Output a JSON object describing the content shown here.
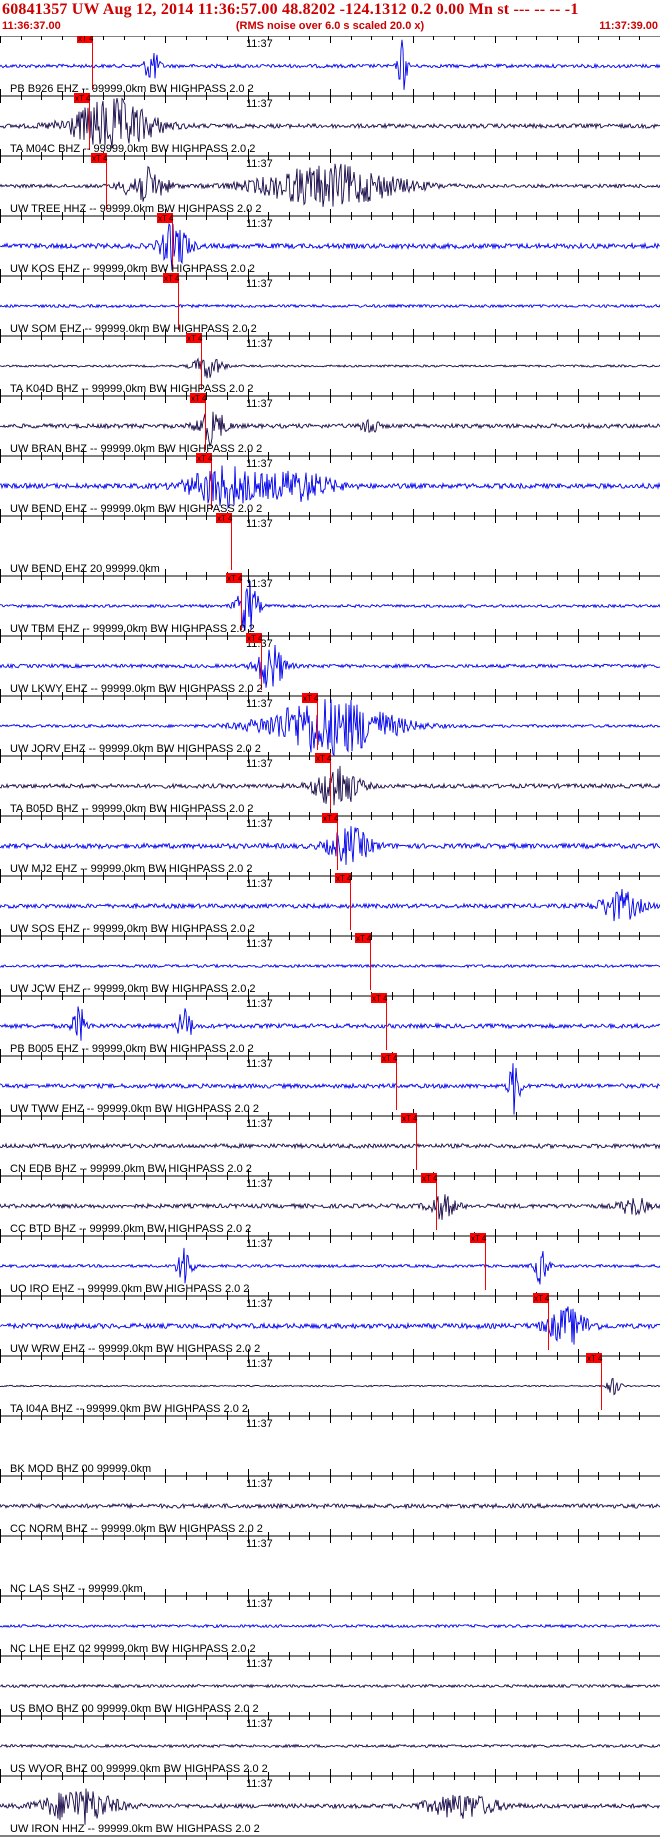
{
  "header": {
    "title": "60841357 UW Aug 12, 2014 11:36:57.00   48.8202 -124.1312  0.2 0.00 Mn st --- -- --  -1",
    "start_time": "11:36:37.00",
    "end_time": "11:37:39.00",
    "rms_note": "(RMS noise over 6.0 s scaled 20.0 x)"
  },
  "colors": {
    "header_text": "#cc0000",
    "pick": "#ff0000",
    "blue": "#0000ee",
    "dark": "#1a0a4a",
    "axis": "#000000"
  },
  "chart_data": {
    "type": "line",
    "title": "60841357 UW Aug 12, 2014 11:36:57.00   48.8202 -124.1312  0.2 0.00 Mn st --- -- --  -1",
    "x_range": [
      "11:36:37.00",
      "11:37:39.00"
    ],
    "minute_label": "11:37",
    "pick_label": "xT 4",
    "traces": [
      {
        "label": "PB B926 EHZ -- 99999.0km BW  HIGHPASS  2.0  2",
        "color": "blue",
        "pick": 0.14,
        "noise": 0.25,
        "bursts": [
          [
            0.23,
            0.6,
            0.01
          ],
          [
            0.61,
            1.0,
            0.006
          ]
        ]
      },
      {
        "label": "TA M04C BHZ -- 99999.0km BW  HIGHPASS  2.0  2",
        "color": "dark",
        "pick": 0.135,
        "noise": 0.3,
        "bursts": [
          [
            0.17,
            0.9,
            0.06
          ]
        ]
      },
      {
        "label": "UW TREE HHZ -- 99999.0km BW  HIGHPASS  2.0  2",
        "color": "dark",
        "pick": 0.16,
        "noise": 0.25,
        "bursts": [
          [
            0.22,
            0.6,
            0.03
          ],
          [
            0.5,
            0.7,
            0.1
          ]
        ]
      },
      {
        "label": "UW KOS EHZ -- 99999.0km BW  HIGHPASS  2.0  2",
        "color": "blue",
        "pick": 0.26,
        "noise": 0.35,
        "bursts": [
          [
            0.265,
            0.8,
            0.02
          ]
        ]
      },
      {
        "label": "UW SOM EHZ -- 99999.0km BW  HIGHPASS  2.0  2",
        "color": "blue",
        "pick": 0.27,
        "noise": 0.2,
        "bursts": []
      },
      {
        "label": "TA K04D BHZ -- 99999.0km BW  HIGHPASS  2.0  2",
        "color": "dark",
        "pick": 0.305,
        "noise": 0.15,
        "bursts": [
          [
            0.315,
            0.4,
            0.02
          ]
        ]
      },
      {
        "label": "UW BRAN BHZ -- 99999.0km BW  HIGHPASS  2.0  2",
        "color": "dark",
        "pick": 0.31,
        "noise": 0.3,
        "bursts": [
          [
            0.32,
            0.6,
            0.02
          ],
          [
            0.56,
            0.4,
            0.01
          ]
        ]
      },
      {
        "label": "UW BEND EHZ -- 99999.0km BW  HIGHPASS  2.0  2",
        "color": "blue",
        "pick": 0.32,
        "noise": 0.35,
        "bursts": [
          [
            0.34,
            0.7,
            0.05
          ],
          [
            0.45,
            0.5,
            0.05
          ]
        ]
      },
      {
        "label": "UW BEND EHZ 20 99999.0km",
        "color": "blue",
        "pick": 0.35,
        "noise": 0.0,
        "bursts": []
      },
      {
        "label": "UW TBM EHZ -- 99999.0km BW  HIGHPASS  2.0  2",
        "color": "blue",
        "pick": 0.365,
        "noise": 0.2,
        "bursts": [
          [
            0.375,
            0.9,
            0.015
          ]
        ]
      },
      {
        "label": "UW LKWY EHZ -- 99999.0km BW  HIGHPASS  2.0  2",
        "color": "blue",
        "pick": 0.395,
        "noise": 0.25,
        "bursts": [
          [
            0.41,
            0.8,
            0.02
          ]
        ]
      },
      {
        "label": "UW JORV EHZ -- 99999.0km BW  HIGHPASS  2.0  2",
        "color": "blue",
        "pick": 0.48,
        "noise": 0.2,
        "bursts": [
          [
            0.5,
            1.0,
            0.09
          ]
        ]
      },
      {
        "label": "TA B05D BHZ -- 99999.0km BW  HIGHPASS  2.0  2",
        "color": "dark",
        "pick": 0.5,
        "noise": 0.3,
        "bursts": [
          [
            0.51,
            0.8,
            0.03
          ]
        ]
      },
      {
        "label": "UW MJ2 EHZ -- 99999.0km BW  HIGHPASS  2.0  2",
        "color": "blue",
        "pick": 0.51,
        "noise": 0.35,
        "bursts": [
          [
            0.53,
            0.6,
            0.03
          ]
        ]
      },
      {
        "label": "UW SOS EHZ -- 99999.0km BW  HIGHPASS  2.0  2",
        "color": "blue",
        "pick": 0.53,
        "noise": 0.3,
        "bursts": [
          [
            0.94,
            0.5,
            0.03
          ]
        ]
      },
      {
        "label": "UW JCW EHZ -- 99999.0km BW  HIGHPASS  2.0  2",
        "color": "blue",
        "pick": 0.56,
        "noise": 0.2,
        "bursts": []
      },
      {
        "label": "PB B005 EHZ -- 99999.0km BW  HIGHPASS  2.0  2",
        "color": "blue",
        "pick": 0.585,
        "noise": 0.3,
        "bursts": [
          [
            0.12,
            0.6,
            0.01
          ],
          [
            0.28,
            0.6,
            0.01
          ]
        ]
      },
      {
        "label": "UW TWW EHZ -- 99999.0km BW  HIGHPASS  2.0  2",
        "color": "blue",
        "pick": 0.6,
        "noise": 0.3,
        "bursts": [
          [
            0.78,
            1.0,
            0.008
          ]
        ]
      },
      {
        "label": "CN EDB BHZ -- 99999.0km BW  HIGHPASS  2.0  2",
        "color": "dark",
        "pick": 0.63,
        "noise": 0.3,
        "bursts": []
      },
      {
        "label": "CC BTD BHZ -- 99999.0km BW  HIGHPASS  2.0  2",
        "color": "dark",
        "pick": 0.66,
        "noise": 0.3,
        "bursts": [
          [
            0.67,
            0.4,
            0.02
          ],
          [
            0.96,
            0.3,
            0.02
          ]
        ]
      },
      {
        "label": "UO IRO EHZ -- 99999.0km BW  HIGHPASS  2.0  2",
        "color": "blue",
        "pick": 0.735,
        "noise": 0.2,
        "bursts": [
          [
            0.28,
            0.8,
            0.01
          ],
          [
            0.82,
            0.6,
            0.01
          ]
        ]
      },
      {
        "label": "UW WRW EHZ -- 99999.0km BW  HIGHPASS  2.0  2",
        "color": "blue",
        "pick": 0.83,
        "noise": 0.35,
        "bursts": [
          [
            0.86,
            0.6,
            0.03
          ]
        ]
      },
      {
        "label": "TA I04A BHZ -- 99999.0km BW  HIGHPASS  2.0  2",
        "color": "dark",
        "pick": 0.91,
        "noise": 0.1,
        "bursts": [
          [
            0.93,
            0.3,
            0.01
          ]
        ]
      },
      {
        "label": "BK MOD BHZ 00 99999.0km",
        "color": "dark",
        "pick": null,
        "noise": 0.0,
        "bursts": []
      },
      {
        "label": "CC NORM BHZ -- 99999.0km BW  HIGHPASS  2.0  2",
        "color": "dark",
        "pick": null,
        "noise": 0.3,
        "bursts": []
      },
      {
        "label": "NC LAS SHZ -- 99999.0km",
        "color": "dark",
        "pick": null,
        "noise": 0.0,
        "bursts": []
      },
      {
        "label": "NC LHE EHZ 02 99999.0km BW  HIGHPASS  2.0  2",
        "color": "blue",
        "pick": null,
        "noise": 0.2,
        "bursts": []
      },
      {
        "label": "US BMO BHZ 00 99999.0km BW  HIGHPASS  2.0  2",
        "color": "dark",
        "pick": null,
        "noise": 0.2,
        "bursts": []
      },
      {
        "label": "US WVOR BHZ 00 99999.0km BW  HIGHPASS  2.0  2",
        "color": "dark",
        "pick": null,
        "noise": 0.2,
        "bursts": []
      },
      {
        "label": "UW IRON HHZ -- 99999.0km BW  HIGHPASS  2.0  2",
        "color": "dark",
        "pick": null,
        "noise": 0.3,
        "bursts": [
          [
            0.12,
            0.6,
            0.05
          ],
          [
            0.7,
            0.4,
            0.05
          ]
        ]
      }
    ]
  }
}
